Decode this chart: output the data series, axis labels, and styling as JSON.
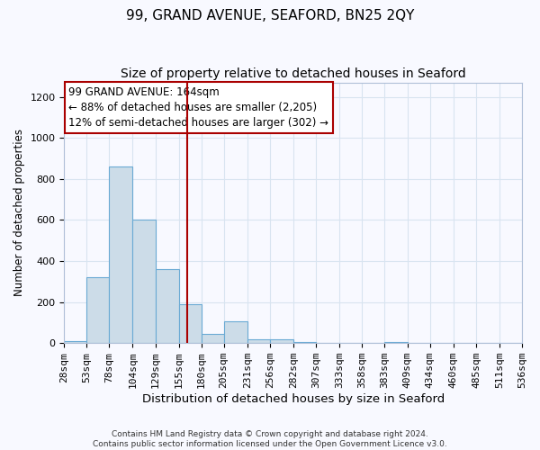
{
  "title": "99, GRAND AVENUE, SEAFORD, BN25 2QY",
  "subtitle": "Size of property relative to detached houses in Seaford",
  "xlabel": "Distribution of detached houses by size in Seaford",
  "ylabel": "Number of detached properties",
  "bar_values": [
    10,
    320,
    860,
    600,
    360,
    190,
    45,
    105,
    20,
    20,
    5,
    0,
    0,
    0,
    5,
    0,
    0,
    0,
    0,
    0
  ],
  "bin_edges": [
    28,
    53,
    78,
    104,
    129,
    155,
    180,
    205,
    231,
    256,
    282,
    307,
    333,
    358,
    383,
    409,
    434,
    460,
    485,
    511,
    536
  ],
  "bin_labels": [
    "28sqm",
    "53sqm",
    "78sqm",
    "104sqm",
    "129sqm",
    "155sqm",
    "180sqm",
    "205sqm",
    "231sqm",
    "256sqm",
    "282sqm",
    "307sqm",
    "333sqm",
    "358sqm",
    "383sqm",
    "409sqm",
    "434sqm",
    "460sqm",
    "485sqm",
    "511sqm",
    "536sqm"
  ],
  "bar_color": "#ccdce8",
  "bar_edge_color": "#6aaad4",
  "vline_x": 164,
  "vline_color": "#aa0000",
  "annotation_line1": "99 GRAND AVENUE: 164sqm",
  "annotation_line2": "← 88% of detached houses are smaller (2,205)",
  "annotation_line3": "12% of semi-detached houses are larger (302) →",
  "ylim": [
    0,
    1270
  ],
  "yticks": [
    0,
    200,
    400,
    600,
    800,
    1000,
    1200
  ],
  "grid_color": "#d8e4f0",
  "footer_text": "Contains HM Land Registry data © Crown copyright and database right 2024.\nContains public sector information licensed under the Open Government Licence v3.0.",
  "title_fontsize": 11,
  "subtitle_fontsize": 10,
  "xlabel_fontsize": 9.5,
  "ylabel_fontsize": 8.5,
  "tick_fontsize": 8,
  "annotation_fontsize": 8.5,
  "footer_fontsize": 6.5,
  "background_color": "#f8f9ff"
}
